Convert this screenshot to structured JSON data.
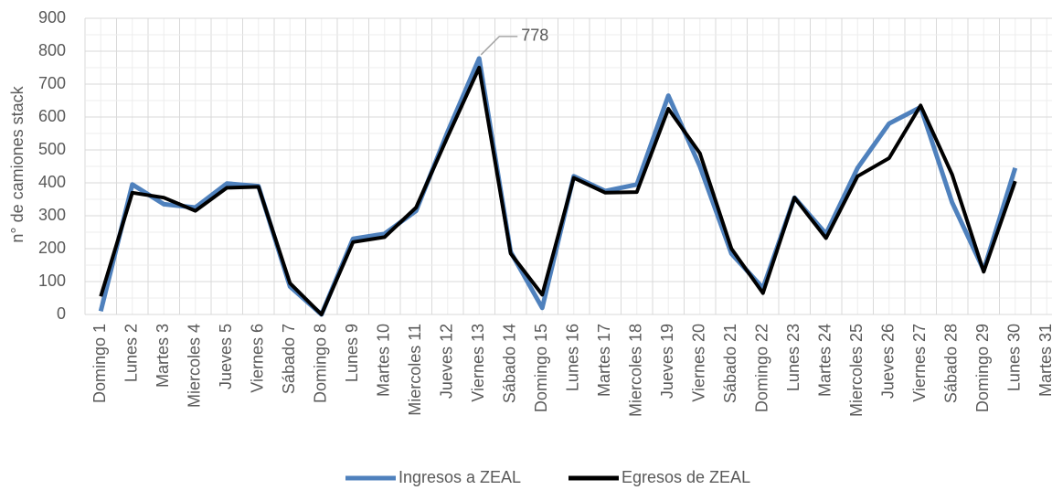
{
  "chart_data": {
    "type": "line",
    "y_label": "n° de camiones stack",
    "categories": [
      "Domingo 1",
      "Lunes 2",
      "Martes 3",
      "Miercoles 4",
      "Jueves 5",
      "Viernes 6",
      "Sábado 7",
      "Domingo 8",
      "Lunes 9",
      "Martes 10",
      "Miercoles 11",
      "Jueves 12",
      "Viernes 13",
      "Sábado 14",
      "Domingo 15",
      "Lunes 16",
      "Martes 17",
      "Miercoles 18",
      "Jueves 19",
      "Viernes 20",
      "Sábado 21",
      "Domingo 22",
      "Lunes 23",
      "Martes 24",
      "Miercoles 25",
      "Jueves 26",
      "Viernes 27",
      "Sábado 28",
      "Domingo 29",
      "Lunes 30",
      "Martes 31"
    ],
    "series": [
      {
        "name": "Ingresos a ZEAL",
        "color": "#4f81bd",
        "values": [
          10,
          395,
          335,
          325,
          398,
          390,
          85,
          0,
          230,
          245,
          315,
          555,
          778,
          190,
          20,
          420,
          375,
          395,
          665,
          450,
          185,
          80,
          355,
          245,
          445,
          580,
          630,
          340,
          135,
          445,
          null
        ]
      },
      {
        "name": "Egresos de ZEAL",
        "color": "#000000",
        "values": [
          55,
          370,
          355,
          315,
          385,
          388,
          95,
          0,
          220,
          235,
          325,
          540,
          750,
          185,
          60,
          415,
          370,
          372,
          625,
          490,
          200,
          65,
          355,
          232,
          420,
          475,
          635,
          425,
          130,
          405,
          null
        ]
      }
    ],
    "ylim": [
      0,
      900
    ],
    "yticks": [
      0,
      100,
      200,
      300,
      400,
      500,
      600,
      700,
      800,
      900
    ],
    "grid": true,
    "legend": "bottom"
  }
}
